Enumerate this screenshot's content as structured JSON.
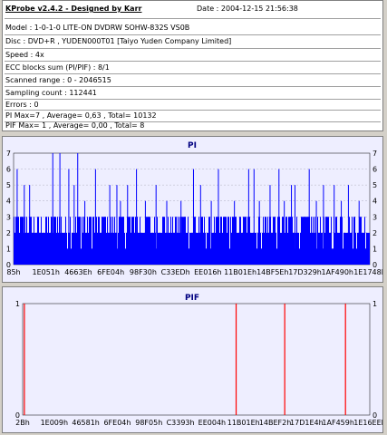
{
  "header": {
    "title": "KProbe v2.4.2 - Designed by Karr",
    "date": "Date : 2004-12-15 21:56:38"
  },
  "info_lines": [
    "Model : 1-0-1-0 LITE-ON DVDRW SOHW-832S  VS0B",
    "Disc : DVD+R , YUDEN000T01 [Taiyo Yuden Company Limited]",
    "Speed : 4x",
    "ECC blocks sum (PI/PIF) : 8/1",
    "Scanned range : 0 - 2046515",
    "Sampling count : 112441",
    "Errors : 0",
    "PI Max=7 , Average= 0,63 , Total= 10132",
    "PIF Max= 1 , Average= 0,00 , Total= 8"
  ],
  "colors": {
    "plot_bg": "#eeeeff",
    "pi_series": "#0000ff",
    "pif_series": "#ff0000",
    "grid": "#b0b0c0"
  },
  "chart_data": [
    {
      "type": "bar",
      "title": "PI",
      "ylim": [
        0,
        7
      ],
      "yticks": [
        0,
        1,
        2,
        3,
        4,
        5,
        6,
        7
      ],
      "grid": true,
      "xticklabels": [
        "85h",
        "1E051h",
        "4663Eh",
        "6FE04h",
        "98F30h",
        "C33EDh",
        "EE016h",
        "11B01Eh",
        "14BF5Eh",
        "17D329h",
        "1AF490h",
        "1E1748h"
      ],
      "baseline_level": 2,
      "baseline_noise_level": 3,
      "spikes": [
        {
          "x_frac": 0.01,
          "value": 6
        },
        {
          "x_frac": 0.03,
          "value": 5
        },
        {
          "x_frac": 0.045,
          "value": 5
        },
        {
          "x_frac": 0.11,
          "value": 7
        },
        {
          "x_frac": 0.13,
          "value": 7
        },
        {
          "x_frac": 0.155,
          "value": 6
        },
        {
          "x_frac": 0.17,
          "value": 5
        },
        {
          "x_frac": 0.18,
          "value": 7
        },
        {
          "x_frac": 0.2,
          "value": 4
        },
        {
          "x_frac": 0.23,
          "value": 6
        },
        {
          "x_frac": 0.27,
          "value": 5
        },
        {
          "x_frac": 0.29,
          "value": 5
        },
        {
          "x_frac": 0.3,
          "value": 4
        },
        {
          "x_frac": 0.32,
          "value": 5
        },
        {
          "x_frac": 0.345,
          "value": 6
        },
        {
          "x_frac": 0.37,
          "value": 4
        },
        {
          "x_frac": 0.4,
          "value": 5
        },
        {
          "x_frac": 0.43,
          "value": 4
        },
        {
          "x_frac": 0.47,
          "value": 4
        },
        {
          "x_frac": 0.505,
          "value": 6
        },
        {
          "x_frac": 0.525,
          "value": 5
        },
        {
          "x_frac": 0.555,
          "value": 4
        },
        {
          "x_frac": 0.575,
          "value": 6
        },
        {
          "x_frac": 0.62,
          "value": 4
        },
        {
          "x_frac": 0.66,
          "value": 6
        },
        {
          "x_frac": 0.675,
          "value": 6
        },
        {
          "x_frac": 0.69,
          "value": 4
        },
        {
          "x_frac": 0.72,
          "value": 5
        },
        {
          "x_frac": 0.745,
          "value": 6
        },
        {
          "x_frac": 0.76,
          "value": 4
        },
        {
          "x_frac": 0.78,
          "value": 5
        },
        {
          "x_frac": 0.79,
          "value": 5
        },
        {
          "x_frac": 0.83,
          "value": 6
        },
        {
          "x_frac": 0.85,
          "value": 4
        },
        {
          "x_frac": 0.87,
          "value": 5
        },
        {
          "x_frac": 0.9,
          "value": 5
        },
        {
          "x_frac": 0.92,
          "value": 4
        },
        {
          "x_frac": 0.94,
          "value": 5
        },
        {
          "x_frac": 0.97,
          "value": 4
        }
      ]
    },
    {
      "type": "bar",
      "title": "PIF",
      "ylim": [
        0,
        1
      ],
      "yticks": [
        0,
        1
      ],
      "grid": true,
      "xticklabels": [
        "2Bh",
        "1E009h",
        "46581h",
        "6FE04h",
        "98F05h",
        "C3393h",
        "EE004h",
        "11B01Eh",
        "14BEF2h",
        "17D1E4h",
        "1AF459h",
        "1E16EEh"
      ],
      "spikes": [
        {
          "x_frac": 0.005,
          "value": 1
        },
        {
          "x_frac": 0.615,
          "value": 1
        },
        {
          "x_frac": 0.755,
          "value": 1
        },
        {
          "x_frac": 0.93,
          "value": 1
        }
      ]
    }
  ]
}
